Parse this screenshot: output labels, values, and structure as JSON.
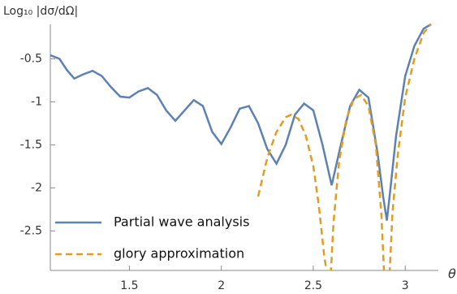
{
  "chart_data": {
    "type": "line",
    "y_label": "Log₁₀ |dσ/dΩ|",
    "x_label": "θ",
    "xlim": [
      1.07,
      3.18
    ],
    "ylim": [
      -2.96,
      -0.1
    ],
    "xticks": [
      1.5,
      2.0,
      2.5,
      3.0
    ],
    "yticks": [
      -0.5,
      -1.0,
      -1.5,
      -2.0,
      -2.5
    ],
    "legend": "lower left",
    "grid": false,
    "series": [
      {
        "name": "Partial wave analysis",
        "color": "#5e81b5",
        "dash": false,
        "x": [
          1.07,
          1.12,
          1.16,
          1.2,
          1.25,
          1.3,
          1.35,
          1.4,
          1.45,
          1.5,
          1.55,
          1.6,
          1.65,
          1.7,
          1.75,
          1.8,
          1.85,
          1.9,
          1.95,
          2.0,
          2.05,
          2.1,
          2.15,
          2.2,
          2.25,
          2.3,
          2.35,
          2.4,
          2.45,
          2.5,
          2.55,
          2.6,
          2.65,
          2.7,
          2.75,
          2.8,
          2.85,
          2.88,
          2.9,
          2.92,
          2.95,
          3.0,
          3.05,
          3.1,
          3.14
        ],
        "values": [
          -0.46,
          -0.5,
          -0.63,
          -0.73,
          -0.68,
          -0.64,
          -0.7,
          -0.83,
          -0.94,
          -0.95,
          -0.88,
          -0.84,
          -0.92,
          -1.1,
          -1.22,
          -1.1,
          -0.98,
          -1.05,
          -1.35,
          -1.49,
          -1.3,
          -1.08,
          -1.05,
          -1.25,
          -1.55,
          -1.72,
          -1.5,
          -1.15,
          -1.02,
          -1.1,
          -1.5,
          -1.97,
          -1.5,
          -1.05,
          -0.86,
          -0.95,
          -1.6,
          -2.1,
          -2.38,
          -2.0,
          -1.4,
          -0.7,
          -0.35,
          -0.15,
          -0.1
        ]
      },
      {
        "name": "glory approximation",
        "color": "#e19c24",
        "dash": true,
        "x": [
          2.2,
          2.25,
          2.3,
          2.35,
          2.38,
          2.42,
          2.46,
          2.5,
          2.53,
          2.56,
          2.575,
          2.585,
          2.595,
          2.61,
          2.64,
          2.68,
          2.72,
          2.76,
          2.8,
          2.84,
          2.87,
          2.885,
          2.9,
          2.915,
          2.93,
          2.96,
          3.0,
          3.05,
          3.1,
          3.14
        ],
        "values": [
          -2.1,
          -1.65,
          -1.35,
          -1.18,
          -1.15,
          -1.2,
          -1.4,
          -1.75,
          -2.2,
          -2.8,
          -3.0,
          null,
          -3.0,
          -2.4,
          -1.7,
          -1.2,
          -0.97,
          -0.92,
          -1.05,
          -1.5,
          -2.3,
          -3.0,
          null,
          -3.0,
          -2.3,
          -1.6,
          -0.95,
          -0.5,
          -0.2,
          -0.1
        ]
      }
    ]
  }
}
